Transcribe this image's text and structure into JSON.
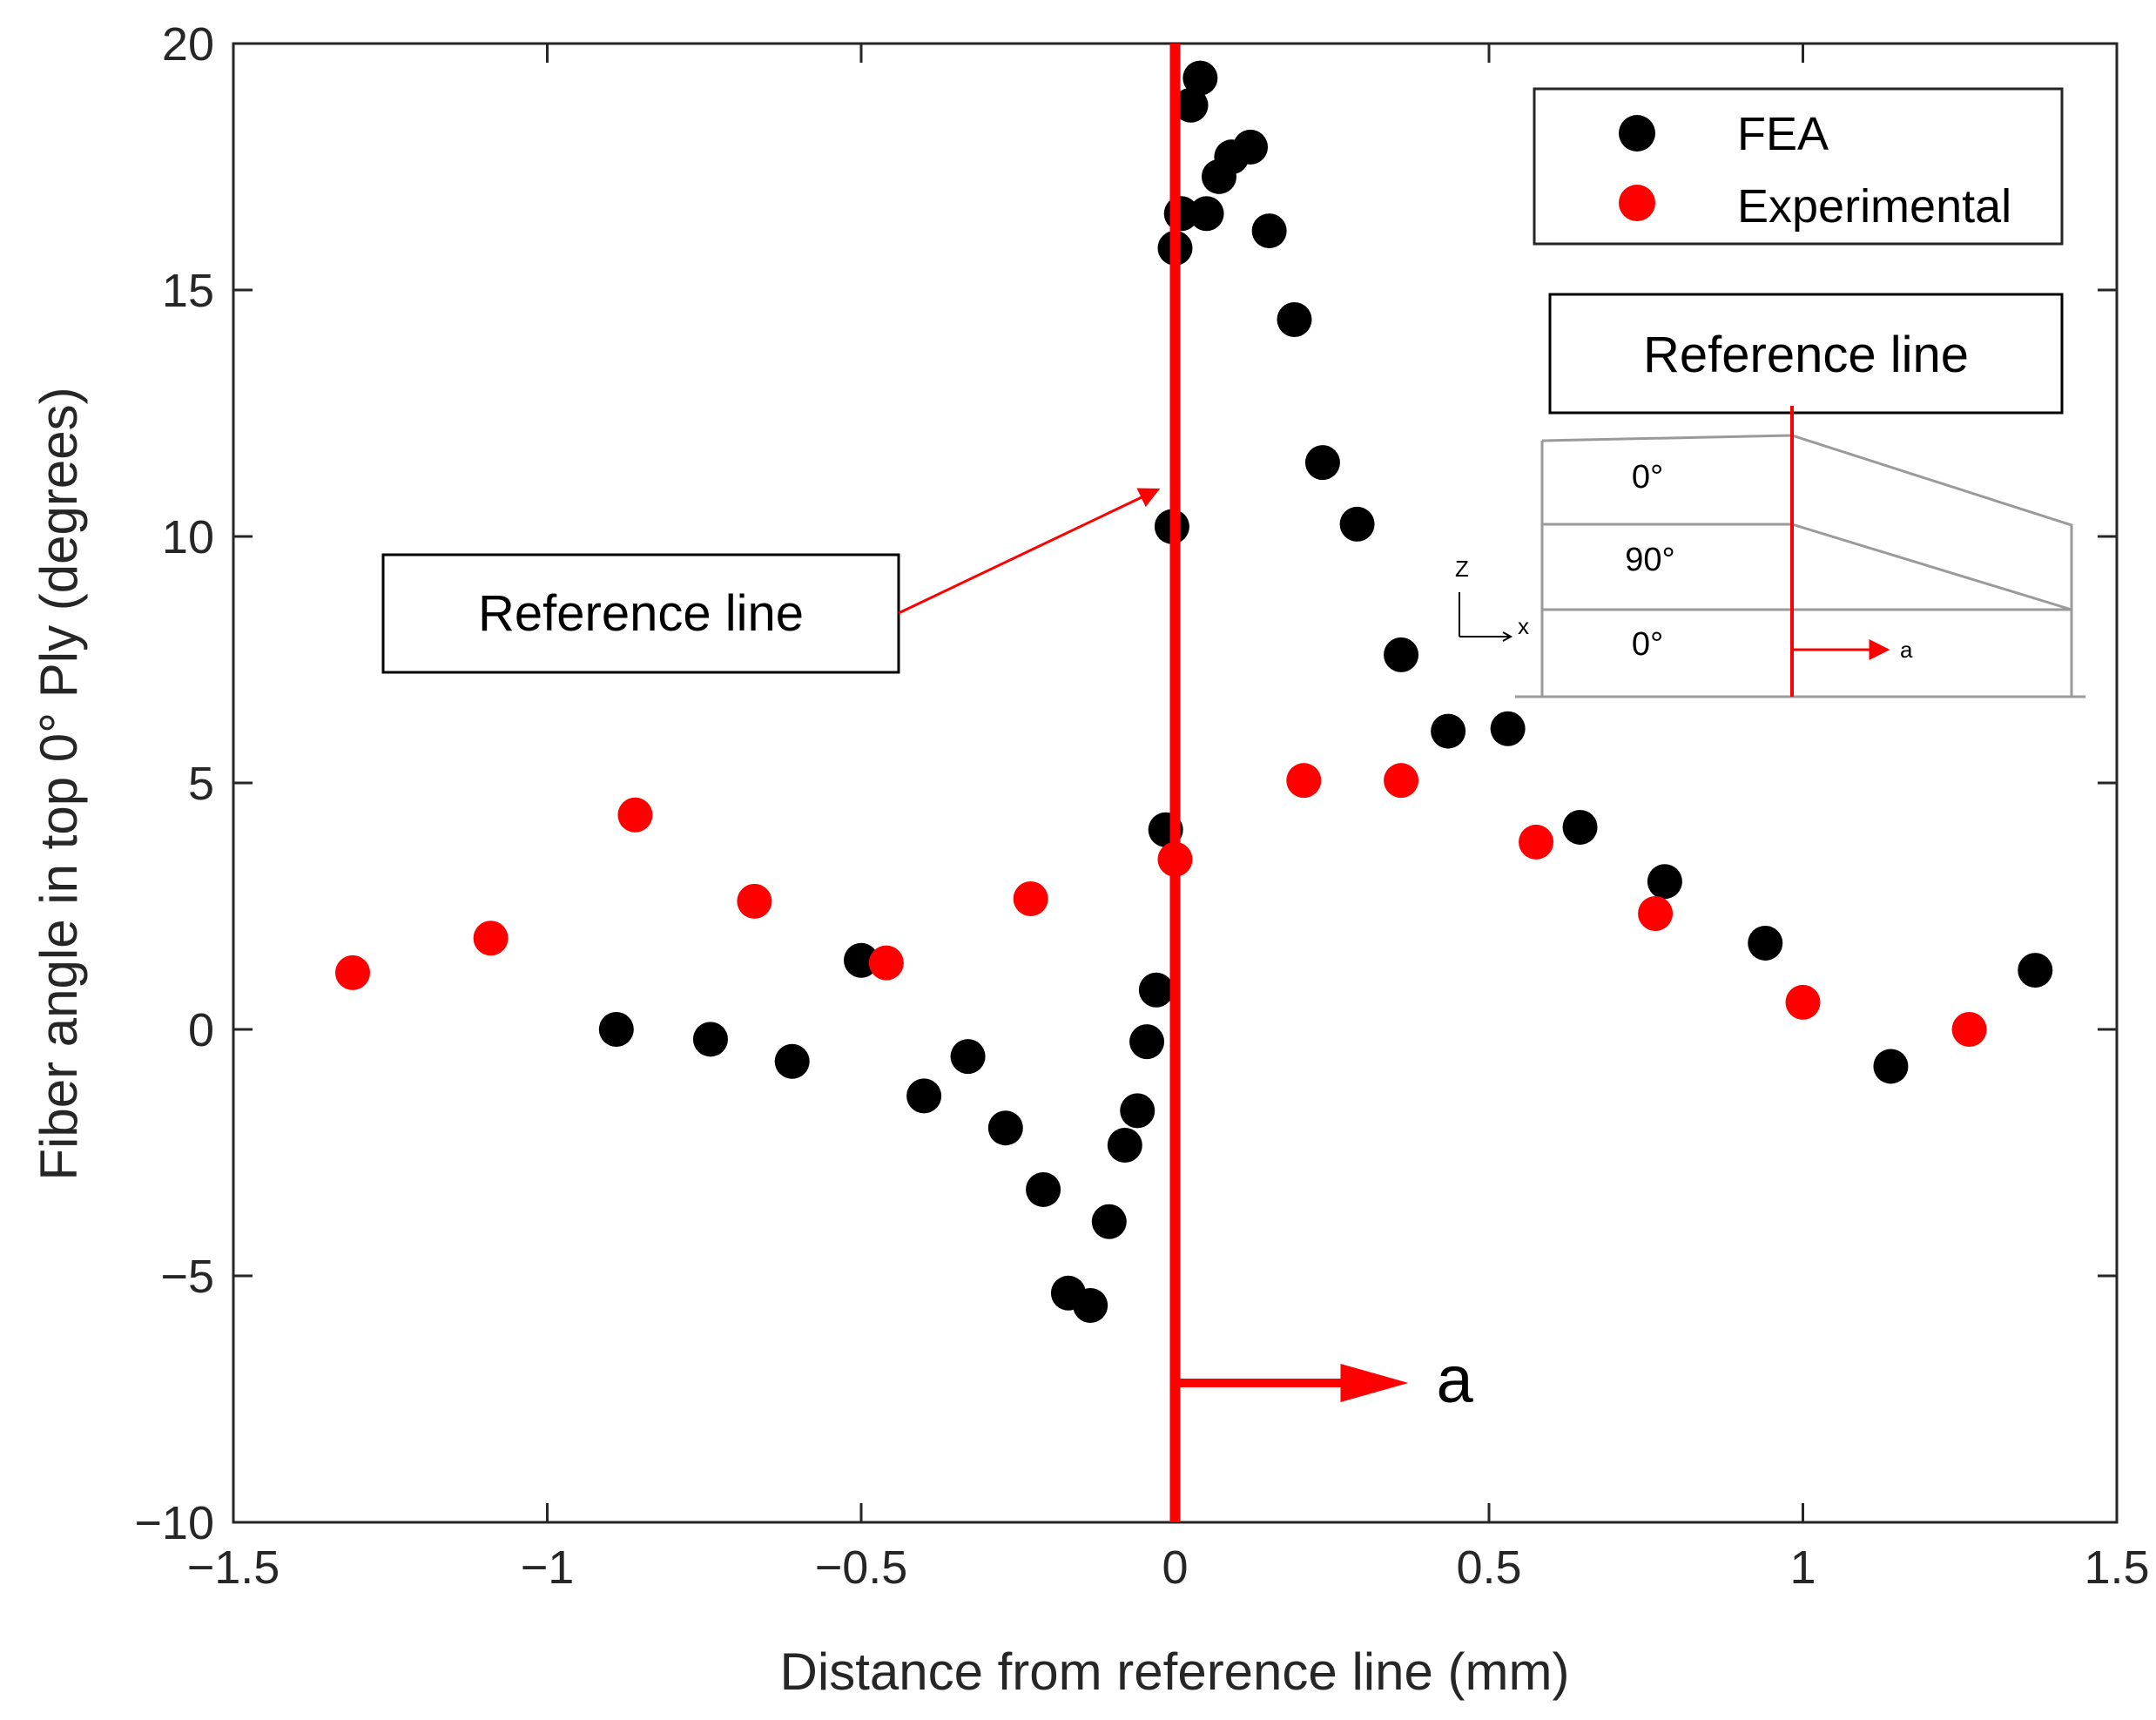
{
  "chart_data": {
    "type": "scatter",
    "title": "",
    "xlabel": "Distance from reference line (mm)",
    "ylabel": "Fiber angle in top 0° Ply (degrees)",
    "xlim": [
      -1.5,
      1.5
    ],
    "ylim": [
      -10,
      20
    ],
    "xticks": [
      -1.5,
      -1,
      -0.5,
      0,
      0.5,
      1,
      1.5
    ],
    "yticks": [
      -10,
      -5,
      0,
      5,
      10,
      15,
      20
    ],
    "xtick_labels": [
      "−1.5",
      "−1",
      "−0.5",
      "0",
      "0.5",
      "1",
      "1.5"
    ],
    "ytick_labels": [
      "−10",
      "−5",
      "0",
      "5",
      "10",
      "15",
      "20"
    ],
    "grid": false,
    "legend_position": "top-right",
    "series": [
      {
        "name": "FEA",
        "color": "#000000",
        "points": [
          {
            "x": -0.89,
            "y": 0.0
          },
          {
            "x": -0.74,
            "y": -0.2
          },
          {
            "x": -0.61,
            "y": -0.65
          },
          {
            "x": -0.5,
            "y": 1.4
          },
          {
            "x": -0.4,
            "y": -1.35
          },
          {
            "x": -0.33,
            "y": -0.55
          },
          {
            "x": -0.27,
            "y": -2.0
          },
          {
            "x": -0.21,
            "y": -3.25
          },
          {
            "x": -0.17,
            "y": -5.35
          },
          {
            "x": -0.135,
            "y": -5.6
          },
          {
            "x": -0.105,
            "y": -3.9
          },
          {
            "x": -0.08,
            "y": -2.35
          },
          {
            "x": -0.06,
            "y": -1.65
          },
          {
            "x": -0.045,
            "y": -0.25
          },
          {
            "x": -0.03,
            "y": 0.8
          },
          {
            "x": -0.015,
            "y": 4.05
          },
          {
            "x": -0.005,
            "y": 10.2
          },
          {
            "x": 0.0,
            "y": 15.85
          },
          {
            "x": 0.01,
            "y": 16.55
          },
          {
            "x": 0.025,
            "y": 18.75
          },
          {
            "x": 0.04,
            "y": 19.3
          },
          {
            "x": 0.05,
            "y": 16.55
          },
          {
            "x": 0.07,
            "y": 17.3
          },
          {
            "x": 0.09,
            "y": 17.7
          },
          {
            "x": 0.12,
            "y": 17.9
          },
          {
            "x": 0.15,
            "y": 16.2
          },
          {
            "x": 0.19,
            "y": 14.4
          },
          {
            "x": 0.235,
            "y": 11.5
          },
          {
            "x": 0.29,
            "y": 10.25
          },
          {
            "x": 0.36,
            "y": 7.6
          },
          {
            "x": 0.435,
            "y": 6.05
          },
          {
            "x": 0.53,
            "y": 6.1
          },
          {
            "x": 0.645,
            "y": 4.1
          },
          {
            "x": 0.78,
            "y": 3.0
          },
          {
            "x": 0.94,
            "y": 1.75
          },
          {
            "x": 1.14,
            "y": -0.75
          },
          {
            "x": 1.37,
            "y": 1.2
          }
        ]
      },
      {
        "name": "Experimental",
        "color": "#ff0000",
        "points": [
          {
            "x": -1.31,
            "y": 1.15
          },
          {
            "x": -1.09,
            "y": 1.85
          },
          {
            "x": -0.86,
            "y": 4.35
          },
          {
            "x": -0.67,
            "y": 2.6
          },
          {
            "x": -0.46,
            "y": 1.35
          },
          {
            "x": -0.23,
            "y": 2.65
          },
          {
            "x": 0.0,
            "y": 3.45
          },
          {
            "x": 0.205,
            "y": 5.05
          },
          {
            "x": 0.36,
            "y": 5.05
          },
          {
            "x": 0.575,
            "y": 3.8
          },
          {
            "x": 0.765,
            "y": 2.35
          },
          {
            "x": 1.0,
            "y": 0.55
          },
          {
            "x": 1.265,
            "y": 0.0
          }
        ]
      }
    ],
    "annotations": {
      "reference_line_x": 0,
      "reference_callout": "Reference line",
      "direction_label": "a",
      "inset": {
        "title": "Reference line",
        "ply_labels": [
          "0°",
          "90°",
          "0°"
        ],
        "axis_z": "Z",
        "axis_x": "x",
        "direction_label": "a"
      }
    }
  }
}
